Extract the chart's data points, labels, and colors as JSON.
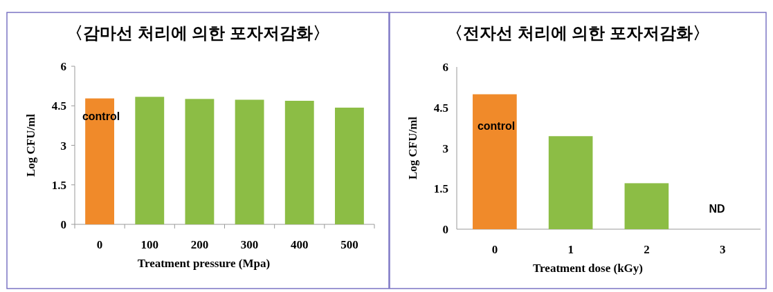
{
  "chart_data": [
    {
      "type": "bar",
      "title": "〈감마선 처리에 의한 포자저감화〉",
      "xlabel": "Treatment pressure (Mpa)",
      "ylabel": "Log CFU/ml",
      "categories": [
        "0",
        "100",
        "200",
        "300",
        "400",
        "500"
      ],
      "values": [
        4.78,
        4.84,
        4.76,
        4.73,
        4.69,
        4.43
      ],
      "colors": [
        "#f08a2a",
        "#8cbd45",
        "#8cbd45",
        "#8cbd45",
        "#8cbd45",
        "#8cbd45"
      ],
      "ylim": [
        0,
        6
      ],
      "yticks": [
        0,
        1.5,
        3,
        4.5,
        6
      ],
      "grid": false,
      "annotations": [
        "control"
      ]
    },
    {
      "type": "bar",
      "title": "〈전자선 처리에 의한 포자저감화〉",
      "xlabel": "Treatment dose (kGy)",
      "ylabel": "Log CFU/ml",
      "categories": [
        "0",
        "1",
        "2",
        "3"
      ],
      "values": [
        4.99,
        3.44,
        1.7,
        null
      ],
      "colors": [
        "#f08a2a",
        "#8cbd45",
        "#8cbd45",
        null
      ],
      "ylim": [
        0,
        6
      ],
      "yticks": [
        0,
        1.5,
        3,
        4.5,
        6
      ],
      "grid": false,
      "annotations": [
        "control",
        "ND"
      ]
    }
  ]
}
